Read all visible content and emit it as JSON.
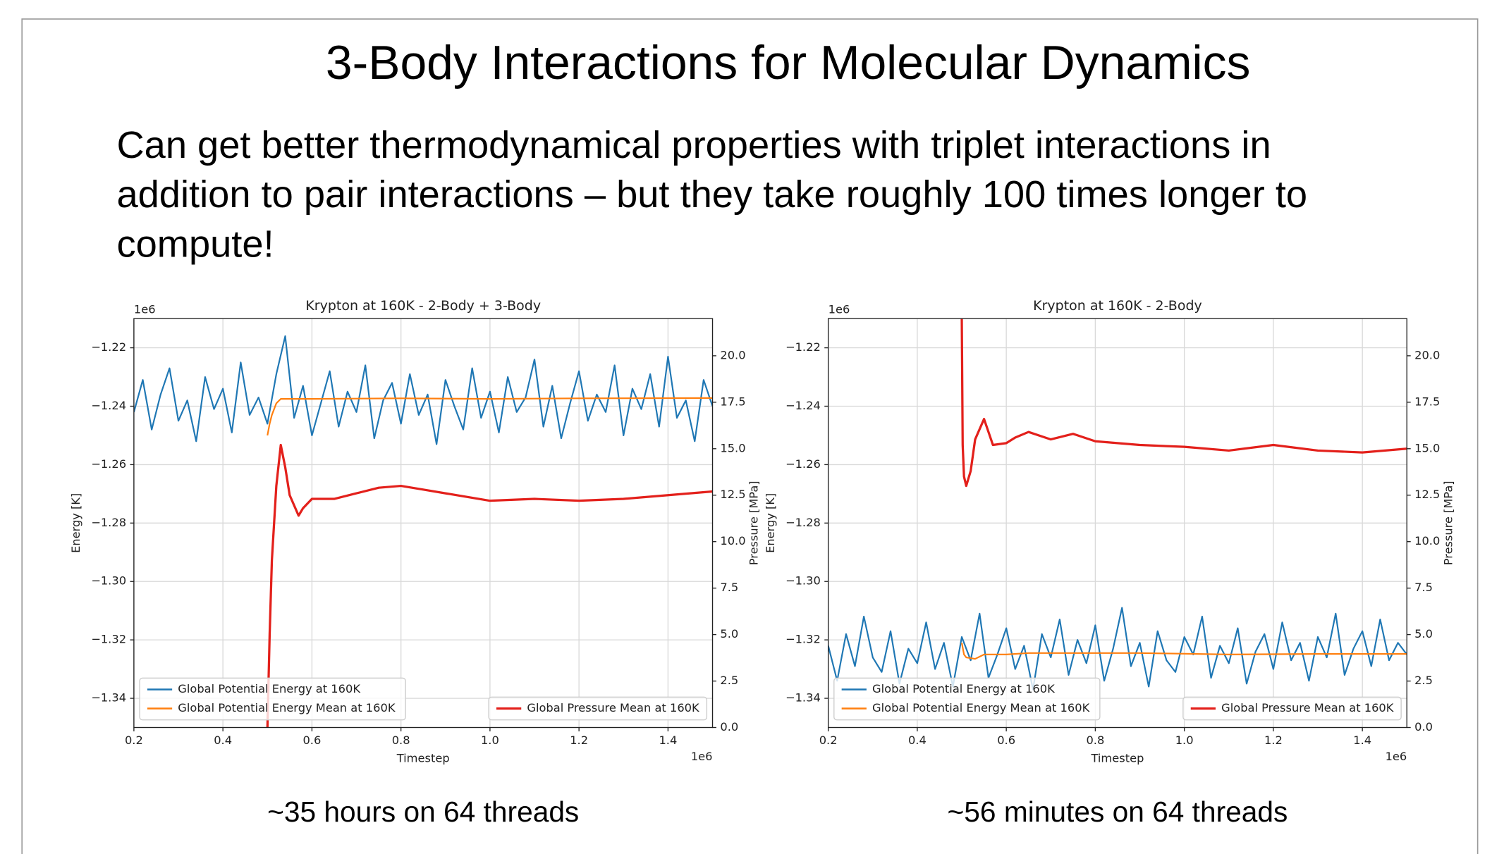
{
  "title": "3-Body Interactions for Molecular Dynamics",
  "body_lines": [
    "Can get better thermodynamical properties with triplet interactions in",
    "addition to pair interactions – but they take roughly 100 times longer to",
    "compute!"
  ],
  "chart_data": [
    {
      "type": "line",
      "title": "Krypton at 160K - 2-Body + 3-Body",
      "caption": "~35 hours on 64 threads",
      "xlabel": "Timestep",
      "ylabel": "Energy [K]",
      "y2label": "Pressure [MPa]",
      "y_offset_label": "1e6",
      "x_offset_label": "1e6",
      "grid": true,
      "legend_loc": {
        "y": "lower left",
        "y2": "lower right"
      },
      "xlim": [
        0.2,
        1.5
      ],
      "xticks": [
        0.2,
        0.4,
        0.6,
        0.8,
        {
          "value": 1,
          "label": "1.0"
        },
        1.2,
        1.4
      ],
      "ylim": [
        -1.35,
        -1.21
      ],
      "yticks": [
        {
          "value": -1.34,
          "label": "−1.34"
        },
        {
          "value": -1.32,
          "label": "−1.32"
        },
        {
          "value": -1.3,
          "label": "−1.30"
        },
        {
          "value": -1.28,
          "label": "−1.28"
        },
        {
          "value": -1.26,
          "label": "−1.26"
        },
        {
          "value": -1.24,
          "label": "−1.24"
        },
        {
          "value": -1.22,
          "label": "−1.22"
        }
      ],
      "y2lim": [
        0,
        22
      ],
      "y2ticks": [
        {
          "value": 0,
          "label": "0.0"
        },
        2.5,
        {
          "value": 5,
          "label": "5.0"
        },
        7.5,
        {
          "value": 10,
          "label": "10.0"
        },
        12.5,
        {
          "value": 15,
          "label": "15.0"
        },
        17.5,
        {
          "value": 20,
          "label": "20.0"
        }
      ],
      "x": [
        0.2,
        0.22,
        0.24,
        0.26,
        0.28,
        0.3,
        0.32,
        0.34,
        0.36,
        0.38,
        0.4,
        0.42,
        0.44,
        0.46,
        0.48,
        0.5,
        0.52,
        0.54,
        0.56,
        0.58,
        0.6,
        0.62,
        0.64,
        0.66,
        0.68,
        0.7,
        0.72,
        0.74,
        0.76,
        0.78,
        0.8,
        0.82,
        0.84,
        0.86,
        0.88,
        0.9,
        0.92,
        0.94,
        0.96,
        0.98,
        1.0,
        1.02,
        1.04,
        1.06,
        1.08,
        1.1,
        1.12,
        1.14,
        1.16,
        1.18,
        1.2,
        1.22,
        1.24,
        1.26,
        1.28,
        1.3,
        1.32,
        1.34,
        1.36,
        1.38,
        1.4,
        1.42,
        1.44,
        1.46,
        1.48,
        1.5
      ],
      "series": [
        {
          "name": "Global Potential Energy at 160K",
          "color": "#1f77b4",
          "axis": "y",
          "values": [
            -1.242,
            -1.231,
            -1.248,
            -1.236,
            -1.227,
            -1.245,
            -1.238,
            -1.252,
            -1.23,
            -1.241,
            -1.234,
            -1.249,
            -1.225,
            -1.243,
            -1.237,
            -1.246,
            -1.229,
            -1.216,
            -1.244,
            -1.233,
            -1.25,
            -1.239,
            -1.228,
            -1.247,
            -1.235,
            -1.242,
            -1.226,
            -1.251,
            -1.238,
            -1.232,
            -1.246,
            -1.229,
            -1.243,
            -1.236,
            -1.253,
            -1.231,
            -1.24,
            -1.248,
            -1.227,
            -1.244,
            -1.235,
            -1.249,
            -1.23,
            -1.242,
            -1.237,
            -1.224,
            -1.247,
            -1.233,
            -1.251,
            -1.239,
            -1.228,
            -1.245,
            -1.236,
            -1.242,
            -1.226,
            -1.25,
            -1.234,
            -1.241,
            -1.229,
            -1.247,
            -1.223,
            -1.244,
            -1.238,
            -1.252,
            -1.231,
            -1.24
          ]
        },
        {
          "name": "Global Potential Energy Mean at 160K",
          "color": "#ff7f0e",
          "axis": "y",
          "x": [
            0.5,
            0.505,
            0.51,
            0.52,
            0.53,
            0.6,
            0.8,
            1.0,
            1.2,
            1.5
          ],
          "values": [
            -1.25,
            -1.246,
            -1.243,
            -1.239,
            -1.2375,
            -1.2375,
            -1.2373,
            -1.2375,
            -1.2373,
            -1.2372
          ]
        },
        {
          "name": "Global Pressure Mean at 160K",
          "color": "#e3201b",
          "axis": "y2",
          "x": [
            0.5,
            0.505,
            0.51,
            0.52,
            0.53,
            0.54,
            0.55,
            0.57,
            0.58,
            0.6,
            0.65,
            0.7,
            0.75,
            0.8,
            0.85,
            0.9,
            1.0,
            1.1,
            1.2,
            1.3,
            1.4,
            1.5
          ],
          "values": [
            0,
            5,
            9,
            13,
            15.2,
            14,
            12.5,
            11.4,
            11.8,
            12.3,
            12.3,
            12.6,
            12.9,
            13,
            12.8,
            12.6,
            12.2,
            12.3,
            12.2,
            12.3,
            12.5,
            12.7
          ]
        }
      ]
    },
    {
      "type": "line",
      "title": "Krypton at 160K - 2-Body",
      "caption": "~56 minutes on 64 threads",
      "xlabel": "Timestep",
      "ylabel": "Energy [K]",
      "y2label": "Pressure [MPa]",
      "y_offset_label": "1e6",
      "x_offset_label": "1e6",
      "grid": true,
      "legend_loc": {
        "y": "lower left",
        "y2": "lower right"
      },
      "xlim": [
        0.2,
        1.5
      ],
      "xticks": [
        0.2,
        0.4,
        0.6,
        0.8,
        {
          "value": 1,
          "label": "1.0"
        },
        1.2,
        1.4
      ],
      "ylim": [
        -1.35,
        -1.21
      ],
      "yticks": [
        {
          "value": -1.34,
          "label": "−1.34"
        },
        {
          "value": -1.32,
          "label": "−1.32"
        },
        {
          "value": -1.3,
          "label": "−1.30"
        },
        {
          "value": -1.28,
          "label": "−1.28"
        },
        {
          "value": -1.26,
          "label": "−1.26"
        },
        {
          "value": -1.24,
          "label": "−1.24"
        },
        {
          "value": -1.22,
          "label": "−1.22"
        }
      ],
      "y2lim": [
        0,
        22
      ],
      "y2ticks": [
        {
          "value": 0,
          "label": "0.0"
        },
        2.5,
        {
          "value": 5,
          "label": "5.0"
        },
        7.5,
        {
          "value": 10,
          "label": "10.0"
        },
        12.5,
        {
          "value": 15,
          "label": "15.0"
        },
        17.5,
        {
          "value": 20,
          "label": "20.0"
        }
      ],
      "x": [
        0.2,
        0.22,
        0.24,
        0.26,
        0.28,
        0.3,
        0.32,
        0.34,
        0.36,
        0.38,
        0.4,
        0.42,
        0.44,
        0.46,
        0.48,
        0.5,
        0.52,
        0.54,
        0.56,
        0.58,
        0.6,
        0.62,
        0.64,
        0.66,
        0.68,
        0.7,
        0.72,
        0.74,
        0.76,
        0.78,
        0.8,
        0.82,
        0.84,
        0.86,
        0.88,
        0.9,
        0.92,
        0.94,
        0.96,
        0.98,
        1.0,
        1.02,
        1.04,
        1.06,
        1.08,
        1.1,
        1.12,
        1.14,
        1.16,
        1.18,
        1.2,
        1.22,
        1.24,
        1.26,
        1.28,
        1.3,
        1.32,
        1.34,
        1.36,
        1.38,
        1.4,
        1.42,
        1.44,
        1.46,
        1.48,
        1.5
      ],
      "series": [
        {
          "name": "Global Potential Energy at 160K",
          "color": "#1f77b4",
          "axis": "y",
          "values": [
            -1.322,
            -1.334,
            -1.318,
            -1.329,
            -1.312,
            -1.326,
            -1.331,
            -1.317,
            -1.335,
            -1.323,
            -1.328,
            -1.314,
            -1.33,
            -1.321,
            -1.336,
            -1.319,
            -1.327,
            -1.311,
            -1.333,
            -1.325,
            -1.316,
            -1.33,
            -1.322,
            -1.337,
            -1.318,
            -1.326,
            -1.313,
            -1.332,
            -1.32,
            -1.328,
            -1.315,
            -1.334,
            -1.323,
            -1.309,
            -1.329,
            -1.321,
            -1.336,
            -1.317,
            -1.327,
            -1.331,
            -1.319,
            -1.325,
            -1.312,
            -1.333,
            -1.322,
            -1.328,
            -1.316,
            -1.335,
            -1.324,
            -1.318,
            -1.33,
            -1.314,
            -1.327,
            -1.321,
            -1.334,
            -1.319,
            -1.326,
            -1.311,
            -1.332,
            -1.323,
            -1.317,
            -1.329,
            -1.313,
            -1.327,
            -1.321,
            -1.325
          ]
        },
        {
          "name": "Global Potential Energy Mean at 160K",
          "color": "#ff7f0e",
          "axis": "y",
          "x": [
            0.5,
            0.505,
            0.51,
            0.53,
            0.55,
            0.6,
            0.65,
            0.7,
            0.9,
            1.1,
            1.3,
            1.5
          ],
          "values": [
            -1.321,
            -1.325,
            -1.326,
            -1.3265,
            -1.325,
            -1.325,
            -1.3245,
            -1.3245,
            -1.3245,
            -1.325,
            -1.3248,
            -1.3248
          ]
        },
        {
          "name": "Global Pressure Mean at 160K",
          "color": "#e3201b",
          "axis": "y2",
          "x": [
            0.5,
            0.502,
            0.505,
            0.51,
            0.52,
            0.53,
            0.55,
            0.57,
            0.6,
            0.62,
            0.65,
            0.7,
            0.75,
            0.8,
            0.9,
            1.0,
            1.1,
            1.2,
            1.3,
            1.4,
            1.5
          ],
          "values": [
            22,
            15.2,
            13.5,
            13,
            13.8,
            15.5,
            16.6,
            15.2,
            15.3,
            15.6,
            15.9,
            15.5,
            15.8,
            15.4,
            15.2,
            15.1,
            14.9,
            15.2,
            14.9,
            14.8,
            15.0
          ]
        }
      ]
    }
  ]
}
